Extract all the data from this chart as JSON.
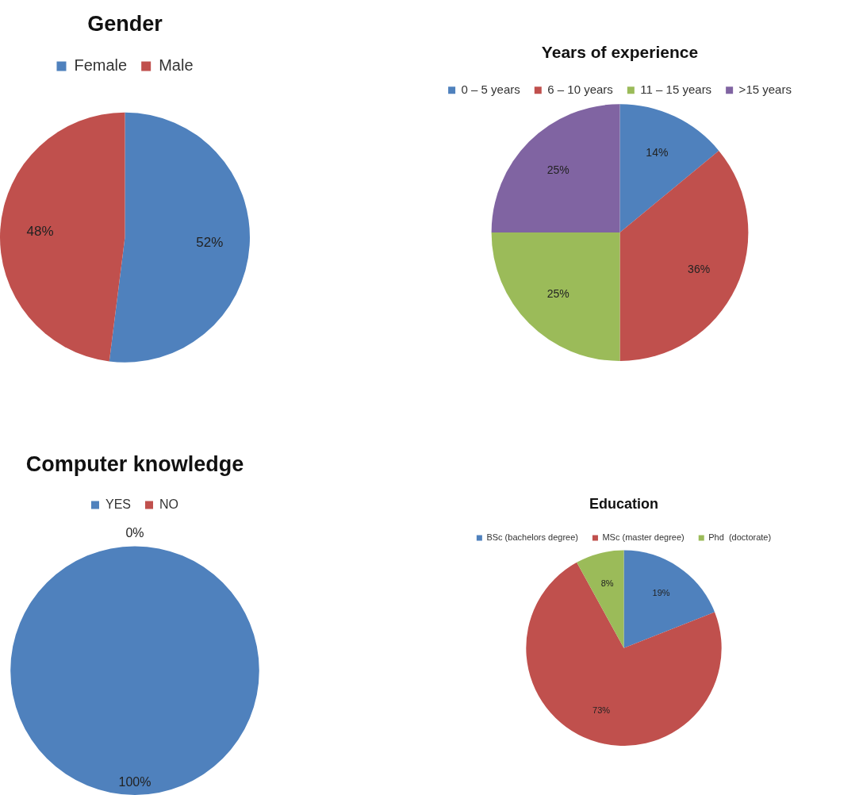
{
  "chart_data": [
    {
      "type": "pie",
      "title": "Gender",
      "categories": [
        "Female",
        "Male"
      ],
      "values": [
        52,
        48
      ],
      "colors": [
        "#4f81bd",
        "#c0504d"
      ],
      "value_labels": [
        "52%",
        "48%"
      ],
      "legend": "top"
    },
    {
      "type": "pie",
      "title": "Years of experience",
      "categories": [
        "0 – 5 years",
        "6 – 10 years",
        "11 – 15 years",
        ">15 years"
      ],
      "values": [
        14,
        36,
        25,
        25
      ],
      "colors": [
        "#4f81bd",
        "#c0504d",
        "#9bbb59",
        "#8064a2"
      ],
      "value_labels": [
        "14%",
        "36%",
        "25%",
        "25%"
      ],
      "legend": "top"
    },
    {
      "type": "pie",
      "title": "Computer knowledge",
      "categories": [
        "YES",
        "NO"
      ],
      "values": [
        100,
        0
      ],
      "colors": [
        "#4f81bd",
        "#c0504d"
      ],
      "value_labels": [
        "100%",
        "0%"
      ],
      "legend": "top"
    },
    {
      "type": "pie",
      "title": "Education",
      "categories": [
        "BSc (bachelors degree)",
        "MSc (master degree)",
        "Phd  (doctorate)"
      ],
      "values": [
        19,
        73,
        8
      ],
      "colors": [
        "#4f81bd",
        "#c0504d",
        "#9bbb59"
      ],
      "value_labels": [
        "19%",
        "73%",
        "8%"
      ],
      "legend": "top"
    }
  ]
}
